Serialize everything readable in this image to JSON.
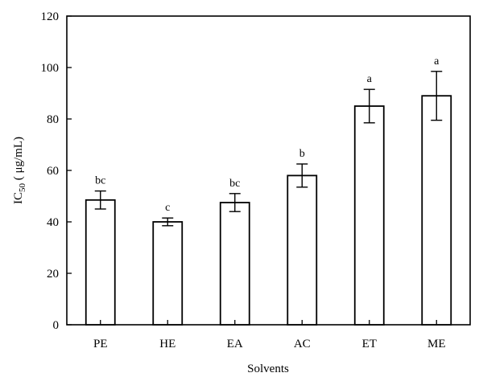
{
  "chart_data": {
    "type": "bar",
    "title": "",
    "xlabel": "Solvents",
    "ylabel": {
      "prefix": "IC",
      "subscript": "50",
      "suffix": " ( μg/mL)"
    },
    "categories": [
      "PE",
      "HE",
      "EA",
      "AC",
      "ET",
      "ME"
    ],
    "series": [
      {
        "values": [
          48.5,
          40,
          47.5,
          58,
          85,
          89
        ],
        "error": [
          3.5,
          1.5,
          3.5,
          4.5,
          6.5,
          9.5
        ],
        "significance": [
          "bc",
          "c",
          "bc",
          "b",
          "a",
          "a"
        ]
      }
    ],
    "ylim": [
      0,
      120
    ],
    "yticks": [
      "0",
      "20",
      "40",
      "60",
      "80",
      "100",
      "120"
    ],
    "grid": false,
    "legend": "none"
  }
}
